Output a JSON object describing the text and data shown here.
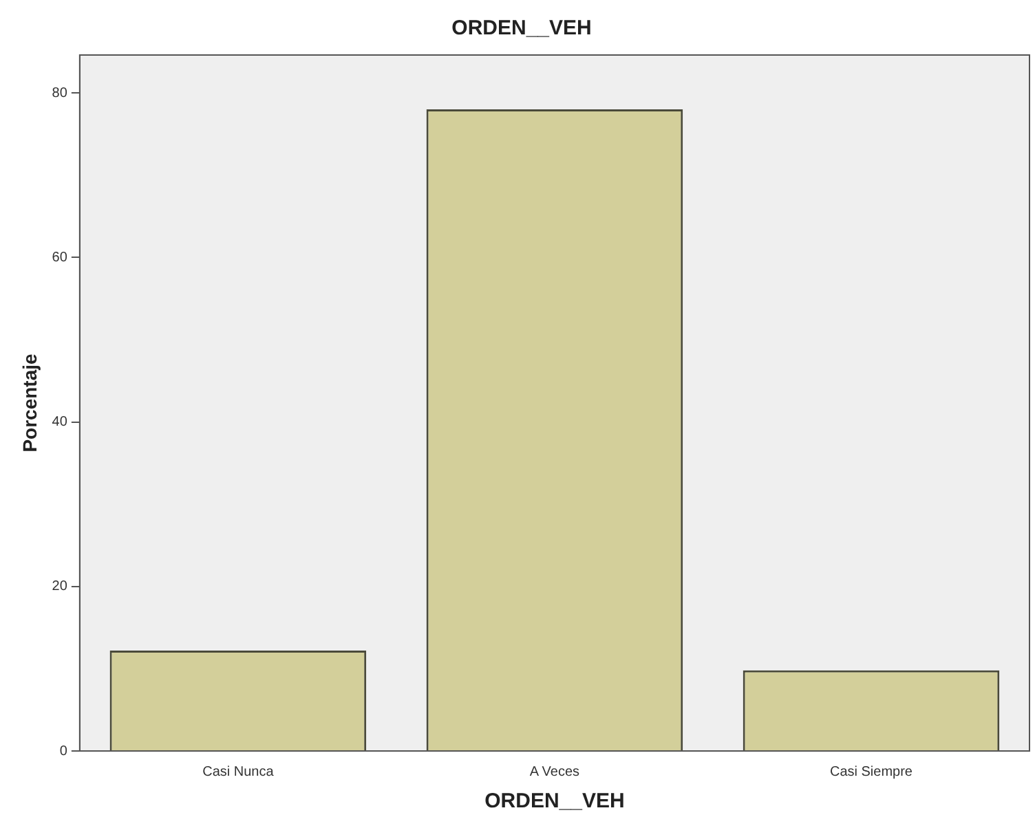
{
  "chart_data": {
    "type": "bar",
    "title": "ORDEN__VEH",
    "xlabel": "ORDEN__VEH",
    "ylabel": "Porcentaje",
    "categories": [
      "Casi Nunca",
      "A Veces",
      "Casi Siempre"
    ],
    "values": [
      12.2,
      78.0,
      9.8
    ],
    "color": "#d3cf9a",
    "ylim": [
      0,
      84.6
    ],
    "yticks": [
      0,
      20,
      40,
      60,
      80
    ],
    "grid": false,
    "legend": false
  }
}
